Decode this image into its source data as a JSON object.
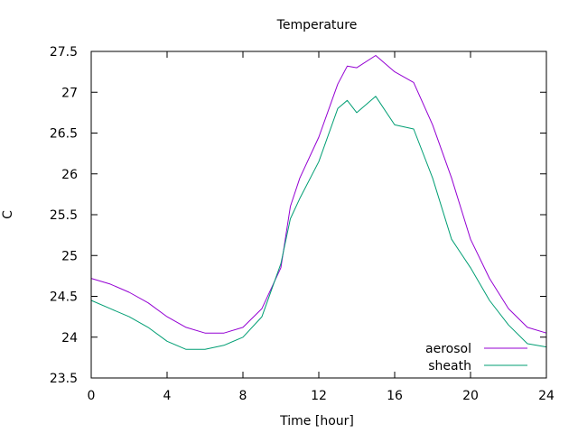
{
  "chart_data": {
    "type": "line",
    "title": "Temperature",
    "xlabel": "Time [hour]",
    "ylabel": "C",
    "xlim": [
      0,
      24
    ],
    "ylim": [
      23.5,
      27.5
    ],
    "xticks": [
      0,
      4,
      8,
      12,
      16,
      20,
      24
    ],
    "xtick_labels": [
      "0",
      "4",
      "8",
      "12",
      "16",
      "20",
      "24"
    ],
    "yticks": [
      23.5,
      24,
      24.5,
      25,
      25.5,
      26,
      26.5,
      27,
      27.5
    ],
    "ytick_labels": [
      "23.5",
      "24",
      "24.5",
      "25",
      "25.5",
      "26",
      "26.5",
      "27",
      "27.5"
    ],
    "grid": false,
    "legend_position": "bottom-right",
    "series": [
      {
        "name": "aerosol",
        "color": "#9400d3",
        "x": [
          0,
          1,
          2,
          3,
          4,
          5,
          6,
          7,
          8,
          9,
          10,
          10.5,
          11,
          12,
          13,
          13.5,
          14,
          15,
          16,
          17,
          18,
          19,
          20,
          21,
          22,
          23,
          24
        ],
        "y": [
          24.72,
          24.65,
          24.55,
          24.42,
          24.25,
          24.12,
          24.05,
          24.05,
          24.12,
          24.35,
          24.85,
          25.6,
          25.95,
          26.45,
          27.1,
          27.32,
          27.3,
          27.45,
          27.25,
          27.12,
          26.6,
          25.95,
          25.2,
          24.72,
          24.35,
          24.12,
          24.05
        ]
      },
      {
        "name": "sheath",
        "color": "#009e73",
        "x": [
          0,
          1,
          2,
          3,
          4,
          5,
          6,
          7,
          8,
          9,
          10,
          10.5,
          11,
          12,
          13,
          13.5,
          14,
          15,
          16,
          17,
          18,
          19,
          20,
          21,
          22,
          23,
          24
        ],
        "y": [
          24.45,
          24.35,
          24.25,
          24.12,
          23.95,
          23.85,
          23.85,
          23.9,
          24.0,
          24.25,
          24.9,
          25.45,
          25.7,
          26.15,
          26.8,
          26.9,
          26.75,
          26.95,
          26.6,
          26.55,
          25.95,
          25.2,
          24.85,
          24.45,
          24.15,
          23.92,
          23.88
        ]
      }
    ]
  }
}
